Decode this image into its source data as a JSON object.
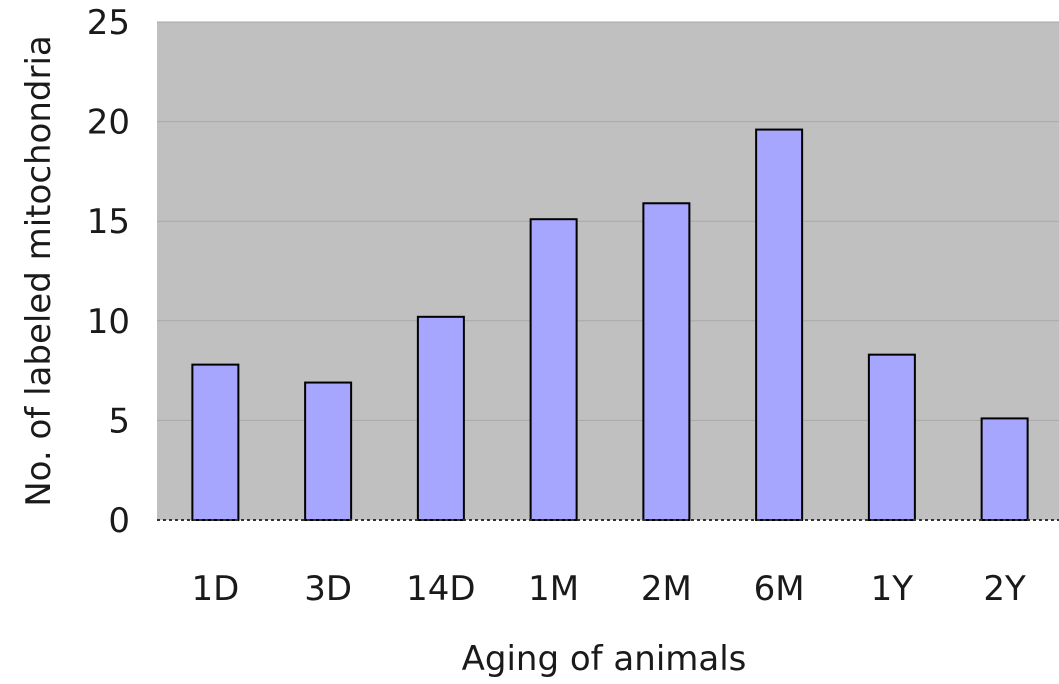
{
  "chart_data": {
    "type": "bar",
    "title": "",
    "xlabel": "Aging of animals",
    "ylabel": "No. of labeled mitochondria",
    "categories": [
      "1D",
      "3D",
      "14D",
      "1M",
      "2M",
      "6M",
      "1Y",
      "2Y"
    ],
    "values": [
      7.8,
      6.9,
      10.2,
      15.1,
      15.9,
      19.6,
      8.3,
      5.1
    ],
    "ylim": [
      0,
      25
    ],
    "yticks": [
      "0",
      "5",
      "10",
      "15",
      "20",
      "25"
    ],
    "grid": true,
    "legend": "none"
  },
  "colors": {
    "plot_background": "#c0c0c0",
    "bar_fill": "#a6a6ff",
    "bar_stroke": "#000000",
    "gridline": "#a8a8a8"
  }
}
